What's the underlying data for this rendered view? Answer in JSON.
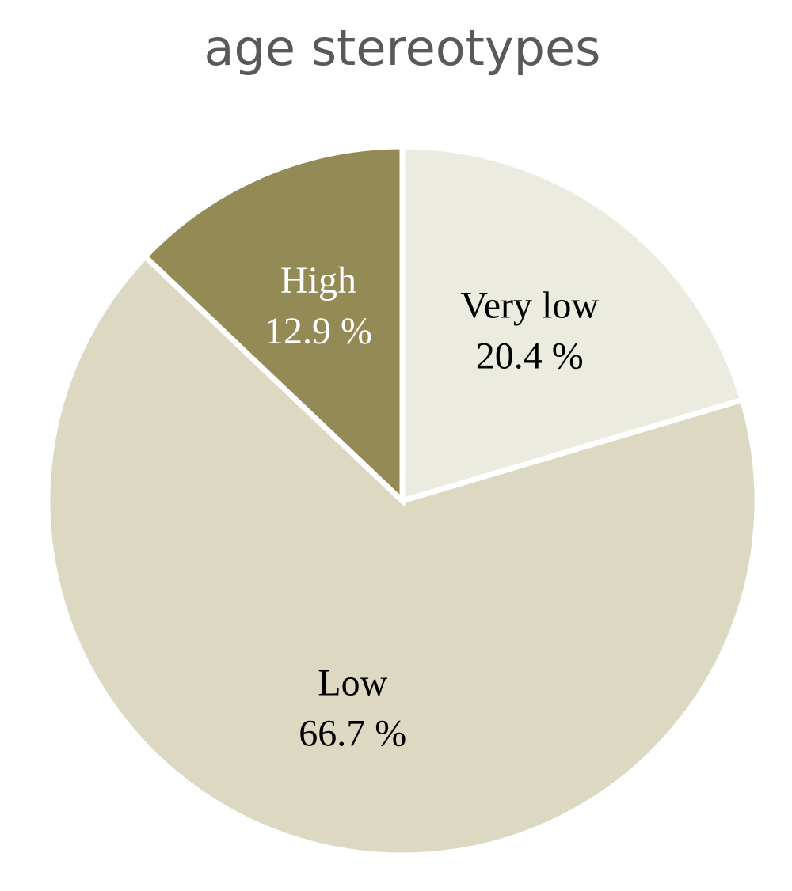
{
  "chart_data": {
    "type": "pie",
    "title": "age stereotypes",
    "categories": [
      "Very low",
      "Low",
      "High"
    ],
    "values": [
      20.4,
      66.7,
      12.9
    ],
    "value_labels": [
      "20.4 %",
      "66.7 %",
      "12.9 %"
    ],
    "colors": [
      "#ecebdf",
      "#dcd8c2",
      "#948a55"
    ]
  }
}
